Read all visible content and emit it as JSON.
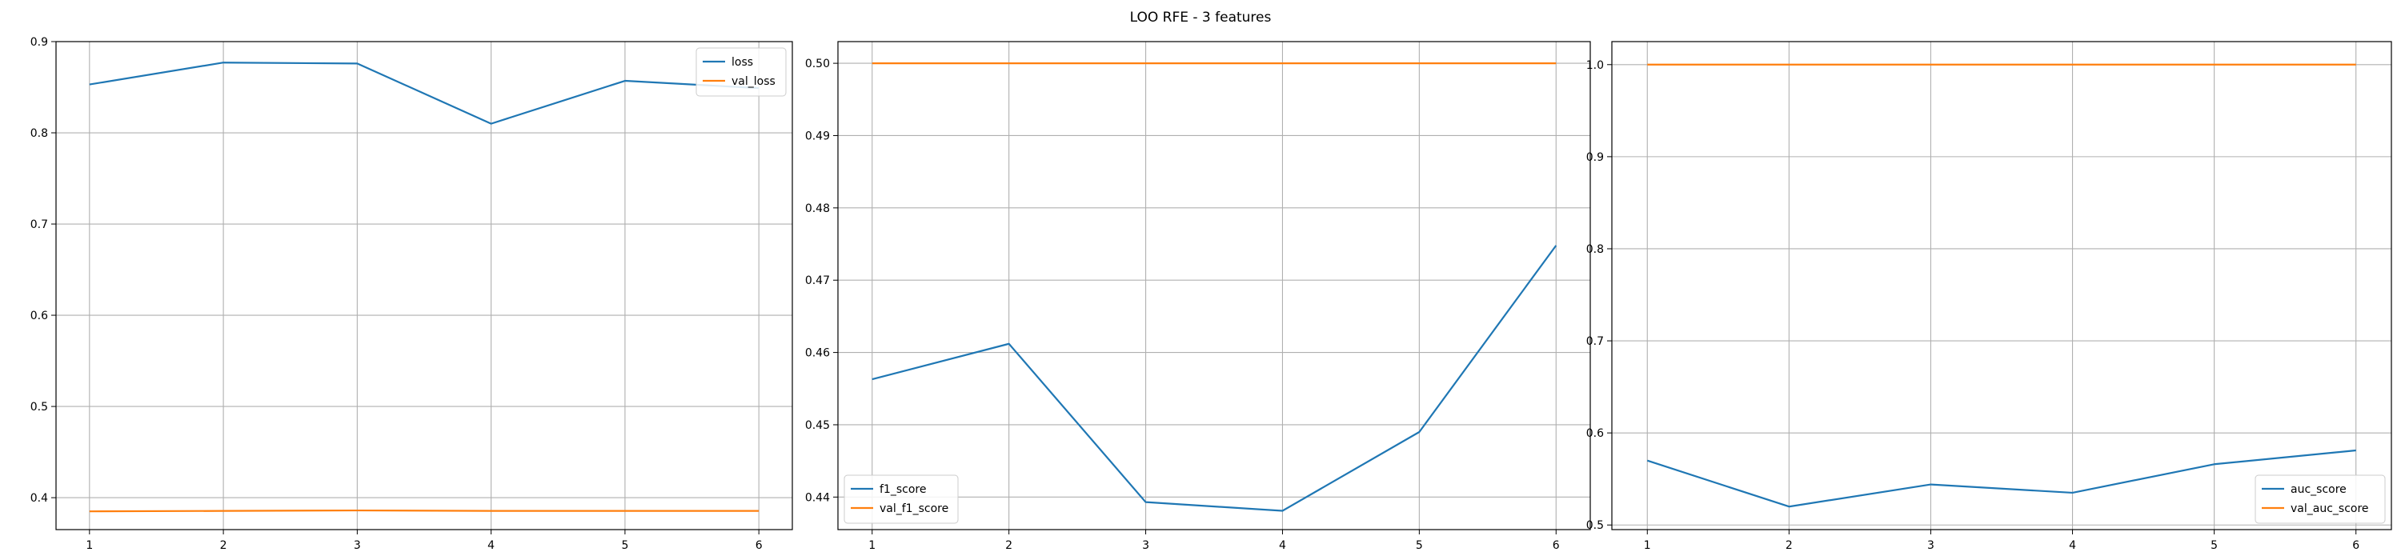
{
  "figure": {
    "title": "LOO RFE - 3 features"
  },
  "colors": {
    "train": "#1f77b4",
    "val": "#ff7f0e",
    "grid": "#b0b0b0",
    "axes": "#000000"
  },
  "chart_data": [
    {
      "type": "line",
      "title": "",
      "xlabel": "",
      "ylabel": "",
      "x": [
        1,
        2,
        3,
        4,
        5,
        6
      ],
      "xticks": [
        "1",
        "2",
        "3",
        "4",
        "5",
        "6"
      ],
      "xlim": [
        0.75,
        6.25
      ],
      "ylim": [
        0.365,
        0.9
      ],
      "yticks": [
        "0.4",
        "0.5",
        "0.6",
        "0.7",
        "0.8",
        "0.9"
      ],
      "ytick_values": [
        0.4,
        0.5,
        0.6,
        0.7,
        0.8,
        0.9
      ],
      "grid": true,
      "legend_position": "top-right",
      "series": [
        {
          "name": "loss",
          "color": "#1f77b4",
          "values": [
            0.853,
            0.877,
            0.876,
            0.81,
            0.857,
            0.849
          ]
        },
        {
          "name": "val_loss",
          "color": "#ff7f0e",
          "values": [
            0.385,
            0.3855,
            0.386,
            0.3855,
            0.3855,
            0.3855
          ]
        }
      ]
    },
    {
      "type": "line",
      "title": "",
      "xlabel": "",
      "ylabel": "",
      "x": [
        1,
        2,
        3,
        4,
        5,
        6
      ],
      "xticks": [
        "1",
        "2",
        "3",
        "4",
        "5",
        "6"
      ],
      "xlim": [
        0.75,
        6.25
      ],
      "ylim": [
        0.4355,
        0.503
      ],
      "yticks": [
        "0.44",
        "0.45",
        "0.46",
        "0.47",
        "0.48",
        "0.49",
        "0.50"
      ],
      "ytick_values": [
        0.44,
        0.45,
        0.46,
        0.47,
        0.48,
        0.49,
        0.5
      ],
      "grid": true,
      "legend_position": "bottom-left",
      "series": [
        {
          "name": "f1_score",
          "color": "#1f77b4",
          "values": [
            0.4563,
            0.4612,
            0.4393,
            0.4381,
            0.449,
            0.4748
          ]
        },
        {
          "name": "val_f1_score",
          "color": "#ff7f0e",
          "values": [
            0.5,
            0.5,
            0.5,
            0.5,
            0.5,
            0.5
          ]
        }
      ]
    },
    {
      "type": "line",
      "title": "",
      "xlabel": "",
      "ylabel": "",
      "x": [
        1,
        2,
        3,
        4,
        5,
        6
      ],
      "xticks": [
        "1",
        "2",
        "3",
        "4",
        "5",
        "6"
      ],
      "xlim": [
        0.75,
        6.25
      ],
      "ylim": [
        0.495,
        1.025
      ],
      "yticks": [
        "0.5",
        "0.6",
        "0.7",
        "0.8",
        "0.9",
        "1.0"
      ],
      "ytick_values": [
        0.5,
        0.6,
        0.7,
        0.8,
        0.9,
        1.0
      ],
      "grid": true,
      "legend_position": "bottom-right",
      "series": [
        {
          "name": "auc_score",
          "color": "#1f77b4",
          "values": [
            0.57,
            0.52,
            0.544,
            0.535,
            0.566,
            0.581
          ]
        },
        {
          "name": "val_auc_score",
          "color": "#ff7f0e",
          "values": [
            1.0,
            1.0,
            1.0,
            1.0,
            1.0,
            1.0
          ]
        }
      ]
    }
  ]
}
